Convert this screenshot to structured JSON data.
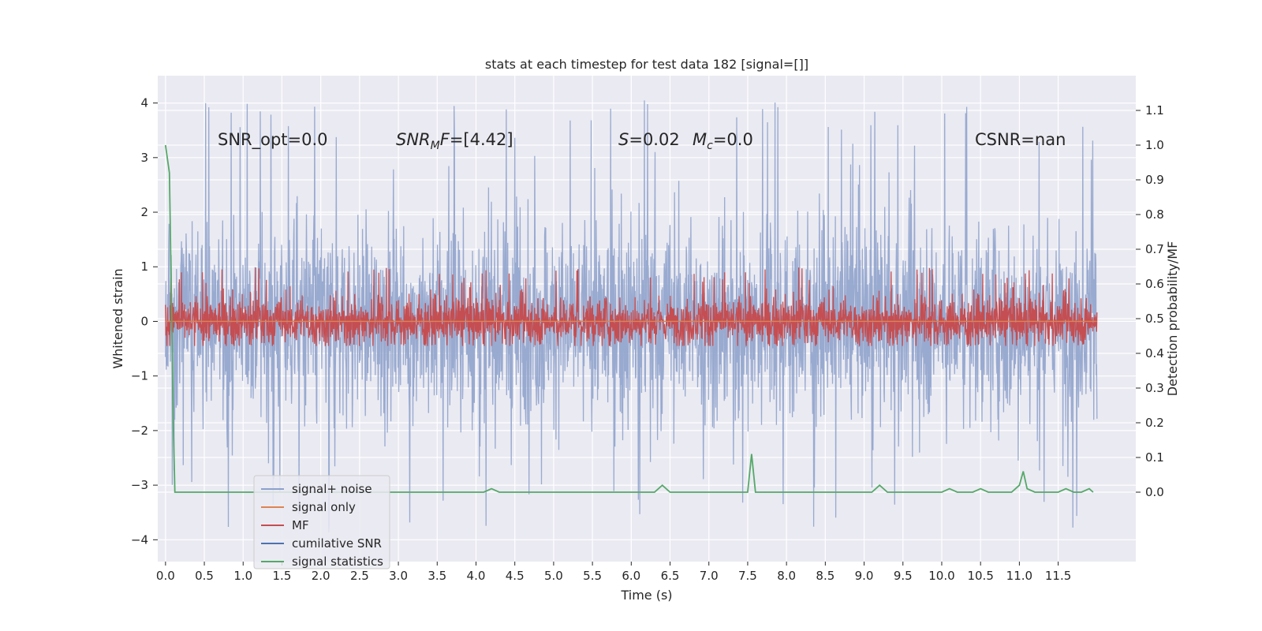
{
  "chart_data": {
    "type": "line",
    "title": "stats at each timestep for test data 182 [signal=[]]",
    "xlabel": "Time (s)",
    "ylabel": "Whitened strain",
    "ylabel_right": "Detection probability/MF",
    "xlim": [
      -0.1,
      12.5
    ],
    "ylim": [
      -4.4,
      4.5
    ],
    "ylim_right": [
      -0.2,
      1.2
    ],
    "x_ticks": [
      0.0,
      0.5,
      1.0,
      1.5,
      2.0,
      2.5,
      3.0,
      3.5,
      4.0,
      4.5,
      5.0,
      5.5,
      6.0,
      6.5,
      7.0,
      7.5,
      8.0,
      8.5,
      9.0,
      9.5,
      10.0,
      10.5,
      11.0,
      11.5
    ],
    "x_tick_labels": [
      "0.0",
      "0.5",
      "1.0",
      "1.5",
      "2.0",
      "2.5",
      "3.0",
      "3.5",
      "4.0",
      "4.5",
      "5.0",
      "5.5",
      "6.0",
      "6.5",
      "7.0",
      "7.5",
      "8.0",
      "8.5",
      "9.0",
      "9.5",
      "10.0",
      "10.5",
      "11.0",
      "11.5"
    ],
    "y_ticks": [
      -4,
      -3,
      -2,
      -1,
      0,
      1,
      2,
      3,
      4
    ],
    "y_tick_labels": [
      "−4",
      "−3",
      "−2",
      "−1",
      "0",
      "1",
      "2",
      "3",
      "4"
    ],
    "y_ticks_right": [
      0.0,
      0.1,
      0.2,
      0.3,
      0.4,
      0.5,
      0.6,
      0.7,
      0.8,
      0.9,
      1.0,
      1.1
    ],
    "y_tick_labels_right": [
      "0.0",
      "0.1",
      "0.2",
      "0.3",
      "0.4",
      "0.5",
      "0.6",
      "0.7",
      "0.8",
      "0.9",
      "1.0",
      "1.1"
    ],
    "grid": true,
    "legend_position": "lower-left",
    "annotations": {
      "snr_opt": "SNR_opt=0.0",
      "snr_mf": "=[4.42]",
      "s_val": "=0.02",
      "mc_val": "=0.0",
      "csnr": "CSNR=nan"
    },
    "series": [
      {
        "name": "signal+ noise",
        "color": "#8da0cb",
        "kind": "noise",
        "x_range": [
          0.0,
          12.0
        ],
        "typical_range": [
          -1.4,
          1.4
        ],
        "extreme_range": [
          -3.9,
          4.1
        ]
      },
      {
        "name": "signal only",
        "color": "#dd8452",
        "kind": "flat",
        "x_range": [
          0.0,
          12.0
        ]
      },
      {
        "name": "MF",
        "color": "#c44e52",
        "kind": "noise",
        "x_range": [
          0.0,
          12.0
        ],
        "typical_range": [
          -0.35,
          0.35
        ],
        "extreme_range": [
          -0.45,
          1.0
        ]
      },
      {
        "name": "cumilative SNR",
        "color": "#4c72b0",
        "kind": "hidden"
      },
      {
        "name": "signal statistics",
        "color": "#55a868",
        "kind": "line",
        "axis": "right",
        "x": [
          0.0,
          0.05,
          0.08,
          0.1,
          0.12,
          0.15,
          1.0,
          2.0,
          3.0,
          4.0,
          4.1,
          4.2,
          4.3,
          5.0,
          6.0,
          6.2,
          6.3,
          6.4,
          6.5,
          7.0,
          7.5,
          7.55,
          7.6,
          7.65,
          7.7,
          8.0,
          8.5,
          9.0,
          9.1,
          9.2,
          9.3,
          9.5,
          9.8,
          10.0,
          10.1,
          10.2,
          10.3,
          10.4,
          10.5,
          10.6,
          10.8,
          10.9,
          11.0,
          11.05,
          11.1,
          11.2,
          11.4,
          11.5,
          11.6,
          11.7,
          11.8,
          11.9,
          11.95
        ],
        "y": [
          1.0,
          0.92,
          0.5,
          0.2,
          0.0,
          0.0,
          0.0,
          0.0,
          0.0,
          0.0,
          0.0,
          0.01,
          0.0,
          0.0,
          0.0,
          0.0,
          0.0,
          0.02,
          0.0,
          0.0,
          0.0,
          0.11,
          0.0,
          0.0,
          0.0,
          0.0,
          0.0,
          0.0,
          0.0,
          0.02,
          0.0,
          0.0,
          0.0,
          0.0,
          0.01,
          0.0,
          0.0,
          0.0,
          0.01,
          0.0,
          0.0,
          0.0,
          0.02,
          0.06,
          0.01,
          0.0,
          0.0,
          0.0,
          0.01,
          0.0,
          0.0,
          0.01,
          0.0
        ]
      }
    ]
  }
}
